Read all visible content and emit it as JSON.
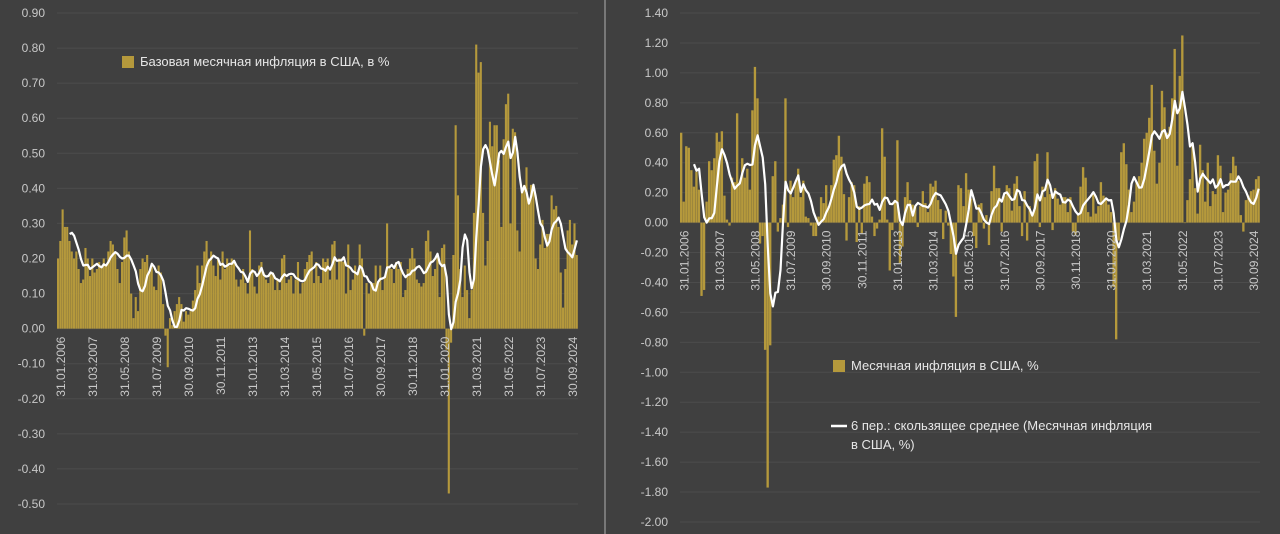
{
  "colors": {
    "background": "#404040",
    "bar": "#b5993c",
    "line": "#ffffff",
    "grid": "#4c4c4c",
    "divider": "#8a8a8a"
  },
  "chart_data": [
    {
      "type": "bar",
      "title": "",
      "legend": [
        "Базовая месячная инфляция в США, в %"
      ],
      "legend_placement": "top-left",
      "ylim": [
        -0.5,
        0.9
      ],
      "y_ticks": [
        "0.90",
        "0.80",
        "0.70",
        "0.60",
        "0.50",
        "0.40",
        "0.30",
        "0.20",
        "0.10",
        "0.00",
        "-0.10",
        "-0.20",
        "-0.30",
        "-0.40",
        "-0.50"
      ],
      "x_tick_labels": [
        "31.01.2006",
        "31.03.2007",
        "31.05.2008",
        "31.07.2009",
        "30.09.2010",
        "30.11.2011",
        "31.01.2013",
        "31.03.2014",
        "31.05.2015",
        "31.07.2016",
        "30.09.2017",
        "30.11.2018",
        "31.01.2020",
        "31.03.2021",
        "31.05.2022",
        "31.07.2023",
        "30.09.2024"
      ],
      "x_start": "01.2006",
      "x_end": "12.2024",
      "frequency": "monthly",
      "overlay": "6-period moving average (white line)",
      "values": [
        0.2,
        0.25,
        0.34,
        0.29,
        0.29,
        0.25,
        0.22,
        0.2,
        0.22,
        0.17,
        0.13,
        0.14,
        0.23,
        0.2,
        0.15,
        0.2,
        0.16,
        0.17,
        0.19,
        0.18,
        0.2,
        0.18,
        0.22,
        0.25,
        0.24,
        0.22,
        0.17,
        0.13,
        0.19,
        0.26,
        0.28,
        0.22,
        0.1,
        0.03,
        0.09,
        0.05,
        0.17,
        0.2,
        0.19,
        0.21,
        0.16,
        0.18,
        0.12,
        0.11,
        0.18,
        0.16,
        0.07,
        -0.02,
        -0.11,
        0.03,
        0.01,
        0.05,
        0.07,
        0.09,
        0.07,
        0.02,
        0.05,
        0.04,
        0.05,
        0.08,
        0.11,
        0.18,
        0.13,
        0.18,
        0.22,
        0.25,
        0.2,
        0.22,
        0.18,
        0.15,
        0.2,
        0.14,
        0.22,
        0.17,
        0.2,
        0.18,
        0.2,
        0.19,
        0.14,
        0.12,
        0.14,
        0.17,
        0.13,
        0.1,
        0.28,
        0.17,
        0.12,
        0.1,
        0.18,
        0.19,
        0.16,
        0.14,
        0.13,
        0.16,
        0.16,
        0.11,
        0.14,
        0.11,
        0.2,
        0.21,
        0.13,
        0.14,
        0.15,
        0.1,
        0.14,
        0.19,
        0.1,
        0.13,
        0.17,
        0.19,
        0.21,
        0.22,
        0.13,
        0.19,
        0.15,
        0.13,
        0.2,
        0.19,
        0.2,
        0.14,
        0.24,
        0.25,
        0.14,
        0.2,
        0.2,
        0.19,
        0.1,
        0.24,
        0.11,
        0.14,
        0.18,
        0.16,
        0.24,
        0.2,
        -0.02,
        0.13,
        0.1,
        0.13,
        0.13,
        0.18,
        0.13,
        0.18,
        0.11,
        0.15,
        0.3,
        0.18,
        0.17,
        0.13,
        0.19,
        0.17,
        0.19,
        0.09,
        0.11,
        0.17,
        0.2,
        0.23,
        0.2,
        0.14,
        0.13,
        0.12,
        0.13,
        0.25,
        0.28,
        0.22,
        0.15,
        0.17,
        0.21,
        0.09,
        0.23,
        0.24,
        -0.06,
        -0.47,
        -0.04,
        0.21,
        0.58,
        0.38,
        0.17,
        0.09,
        0.18,
        0.11,
        0.03,
        0.11,
        0.33,
        0.81,
        0.73,
        0.76,
        0.33,
        0.18,
        0.25,
        0.59,
        0.52,
        0.58,
        0.58,
        0.48,
        0.29,
        0.54,
        0.64,
        0.67,
        0.3,
        0.57,
        0.56,
        0.28,
        0.22,
        0.4,
        0.41,
        0.46,
        0.37,
        0.41,
        0.41,
        0.2,
        0.17,
        0.24,
        0.31,
        0.23,
        0.27,
        0.27,
        0.38,
        0.34,
        0.35,
        0.29,
        0.16,
        0.06,
        0.17,
        0.28,
        0.31,
        0.24,
        0.3,
        0.21
      ]
    },
    {
      "type": "bar",
      "title": "",
      "legend": [
        "Месячная инфляция в США, %",
        "6 пер.: скользящее среднее (Месячная инфляция в США, %)"
      ],
      "legend_placement": "bottom-left",
      "ylim": [
        -2.0,
        1.4
      ],
      "y_ticks": [
        "1.40",
        "1.20",
        "1.00",
        "0.80",
        "0.60",
        "0.40",
        "0.20",
        "0.00",
        "-0.20",
        "-0.40",
        "-0.60",
        "-0.80",
        "-1.00",
        "-1.20",
        "-1.40",
        "-1.60",
        "-1.80",
        "-2.00"
      ],
      "x_tick_labels": [
        "31.01.2006",
        "31.03.2007",
        "31.05.2008",
        "31.07.2009",
        "30.09.2010",
        "30.11.2011",
        "31.01.2013",
        "31.03.2014",
        "31.05.2015",
        "31.07.2016",
        "30.09.2017",
        "30.11.2018",
        "31.01.2020",
        "31.03.2021",
        "31.05.2022",
        "31.07.2023",
        "30.09.2024"
      ],
      "x_start": "01.2006",
      "x_end": "12.2024",
      "frequency": "monthly",
      "overlay": "6-period moving average (white line)",
      "values": [
        0.6,
        0.14,
        0.51,
        0.5,
        0.35,
        0.24,
        0.34,
        0.22,
        -0.49,
        -0.45,
        0.14,
        0.41,
        0.35,
        0.43,
        0.6,
        0.54,
        0.61,
        0.18,
        0.02,
        -0.02,
        0.3,
        0.27,
        0.73,
        0.27,
        0.43,
        0.3,
        0.36,
        0.22,
        0.75,
        1.04,
        0.83,
        -0.14,
        -0.09,
        -0.85,
        -1.77,
        -0.82,
        0.31,
        0.41,
        -0.06,
        0.03,
        0.12,
        0.83,
        -0.03,
        0.28,
        0.17,
        0.28,
        0.36,
        0.17,
        0.28,
        0.04,
        0.03,
        -0.02,
        -0.09,
        -0.09,
        0.04,
        0.17,
        0.13,
        0.25,
        0.11,
        0.25,
        0.42,
        0.45,
        0.58,
        0.44,
        0.19,
        -0.12,
        0.17,
        0.27,
        0.25,
        -0.13,
        0.11,
        -0.07,
        0.26,
        0.31,
        0.27,
        0.04,
        -0.09,
        -0.04,
        0.02,
        0.63,
        0.44,
        0.02,
        -0.32,
        -0.05,
        0.15,
        0.55,
        -0.27,
        -0.16,
        0.17,
        0.27,
        0.15,
        0.12,
        0.11,
        -0.03,
        0.11,
        0.21,
        0.13,
        0.07,
        0.26,
        0.24,
        0.28,
        0.15,
        0.09,
        -0.11,
        0.08,
        -0.02,
        -0.21,
        -0.36,
        -0.63,
        0.25,
        0.23,
        0.11,
        0.33,
        0.22,
        0.16,
        -0.09,
        -0.17,
        0.12,
        0.13,
        -0.04,
        0.05,
        -0.15,
        0.21,
        0.38,
        0.23,
        0.23,
        -0.06,
        0.18,
        0.25,
        0.23,
        0.08,
        0.26,
        0.31,
        0.11,
        -0.09,
        0.21,
        -0.12,
        0.11,
        0.06,
        0.41,
        0.46,
        -0.03,
        0.24,
        0.17,
        0.47,
        0.19,
        -0.05,
        0.23,
        0.16,
        0.12,
        0.17,
        0.17,
        0.07,
        0.17,
        -0.06,
        -0.08,
        0.05,
        0.24,
        0.37,
        0.3,
        0.07,
        0.04,
        0.2,
        0.06,
        0.11,
        0.27,
        0.18,
        0.15,
        0.12,
        0.07,
        -0.43,
        -0.78,
        -0.12,
        0.47,
        0.53,
        0.39,
        0.22,
        0.07,
        0.14,
        0.27,
        0.31,
        0.4,
        0.56,
        0.6,
        0.7,
        0.92,
        0.48,
        0.26,
        0.4,
        0.88,
        0.77,
        0.6,
        0.64,
        0.83,
        1.16,
        0.38,
        0.98,
        1.25,
        0.0,
        0.15,
        0.29,
        0.51,
        0.23,
        0.06,
        0.52,
        0.35,
        0.14,
        0.4,
        0.11,
        0.21,
        0.19,
        0.45,
        0.38,
        0.07,
        0.2,
        0.22,
        0.33,
        0.44,
        0.38,
        0.28,
        0.05,
        -0.06,
        0.15,
        0.18,
        0.21,
        0.22,
        0.29,
        0.31
      ]
    }
  ]
}
